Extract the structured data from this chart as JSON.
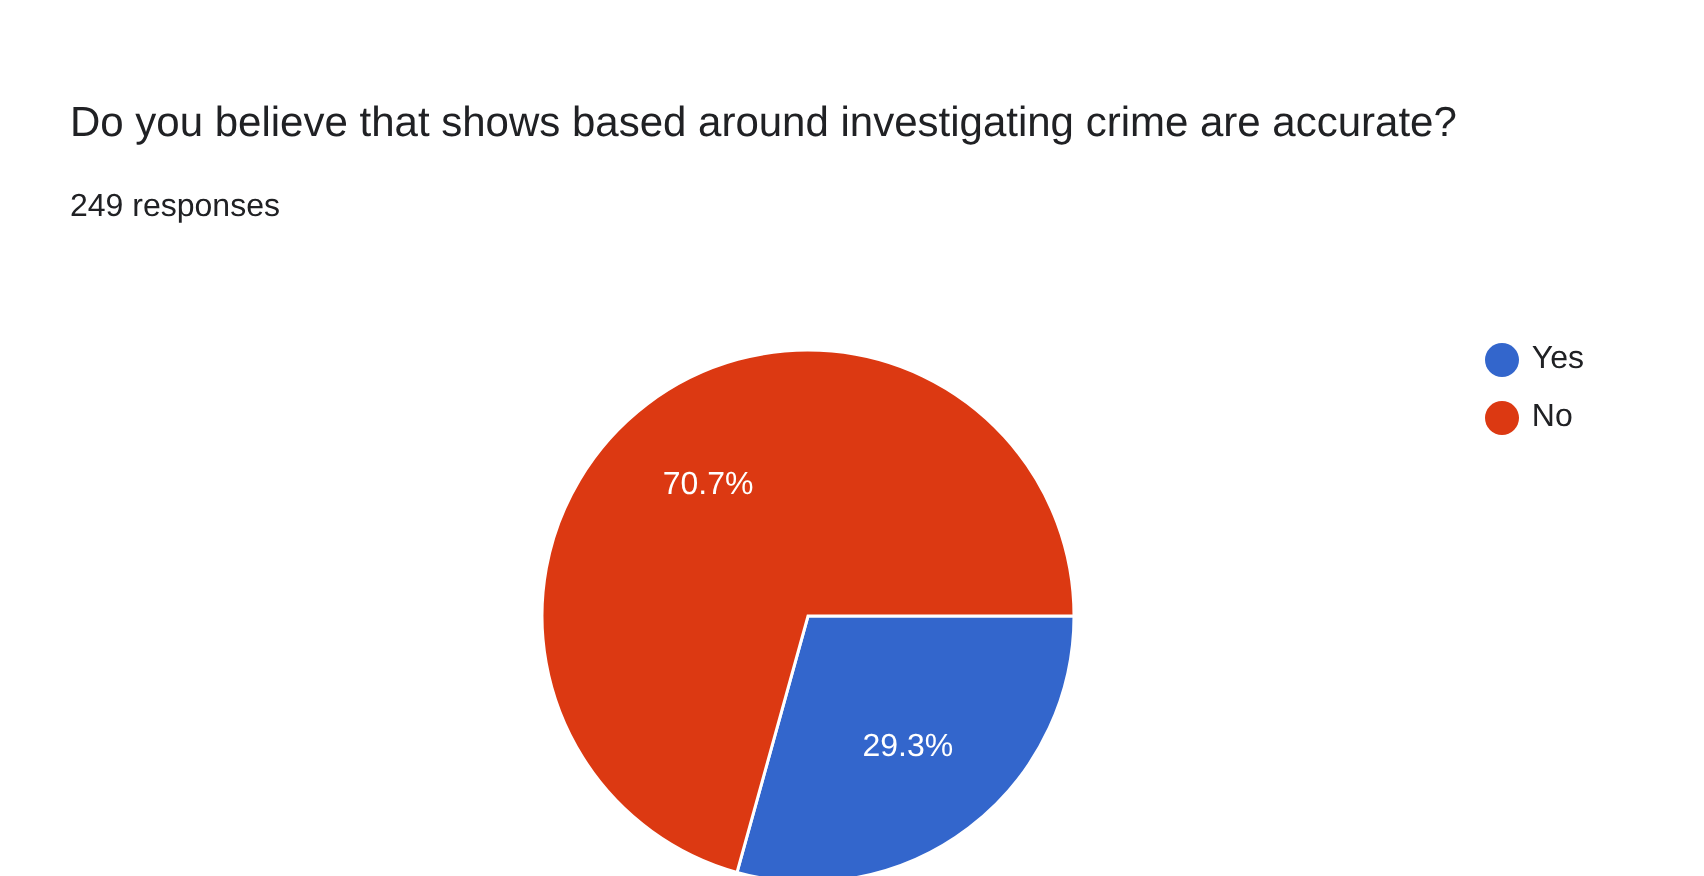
{
  "chart_data": {
    "type": "pie",
    "title": "Do you believe that shows based around investigating crime are accurate?",
    "subtitle": "249 responses",
    "categories": [
      "Yes",
      "No"
    ],
    "values": [
      29.3,
      70.7
    ],
    "colors": [
      "#3366cc",
      "#dc3912"
    ],
    "value_labels": [
      "29.3%",
      "70.7%"
    ],
    "legend": "top right"
  }
}
